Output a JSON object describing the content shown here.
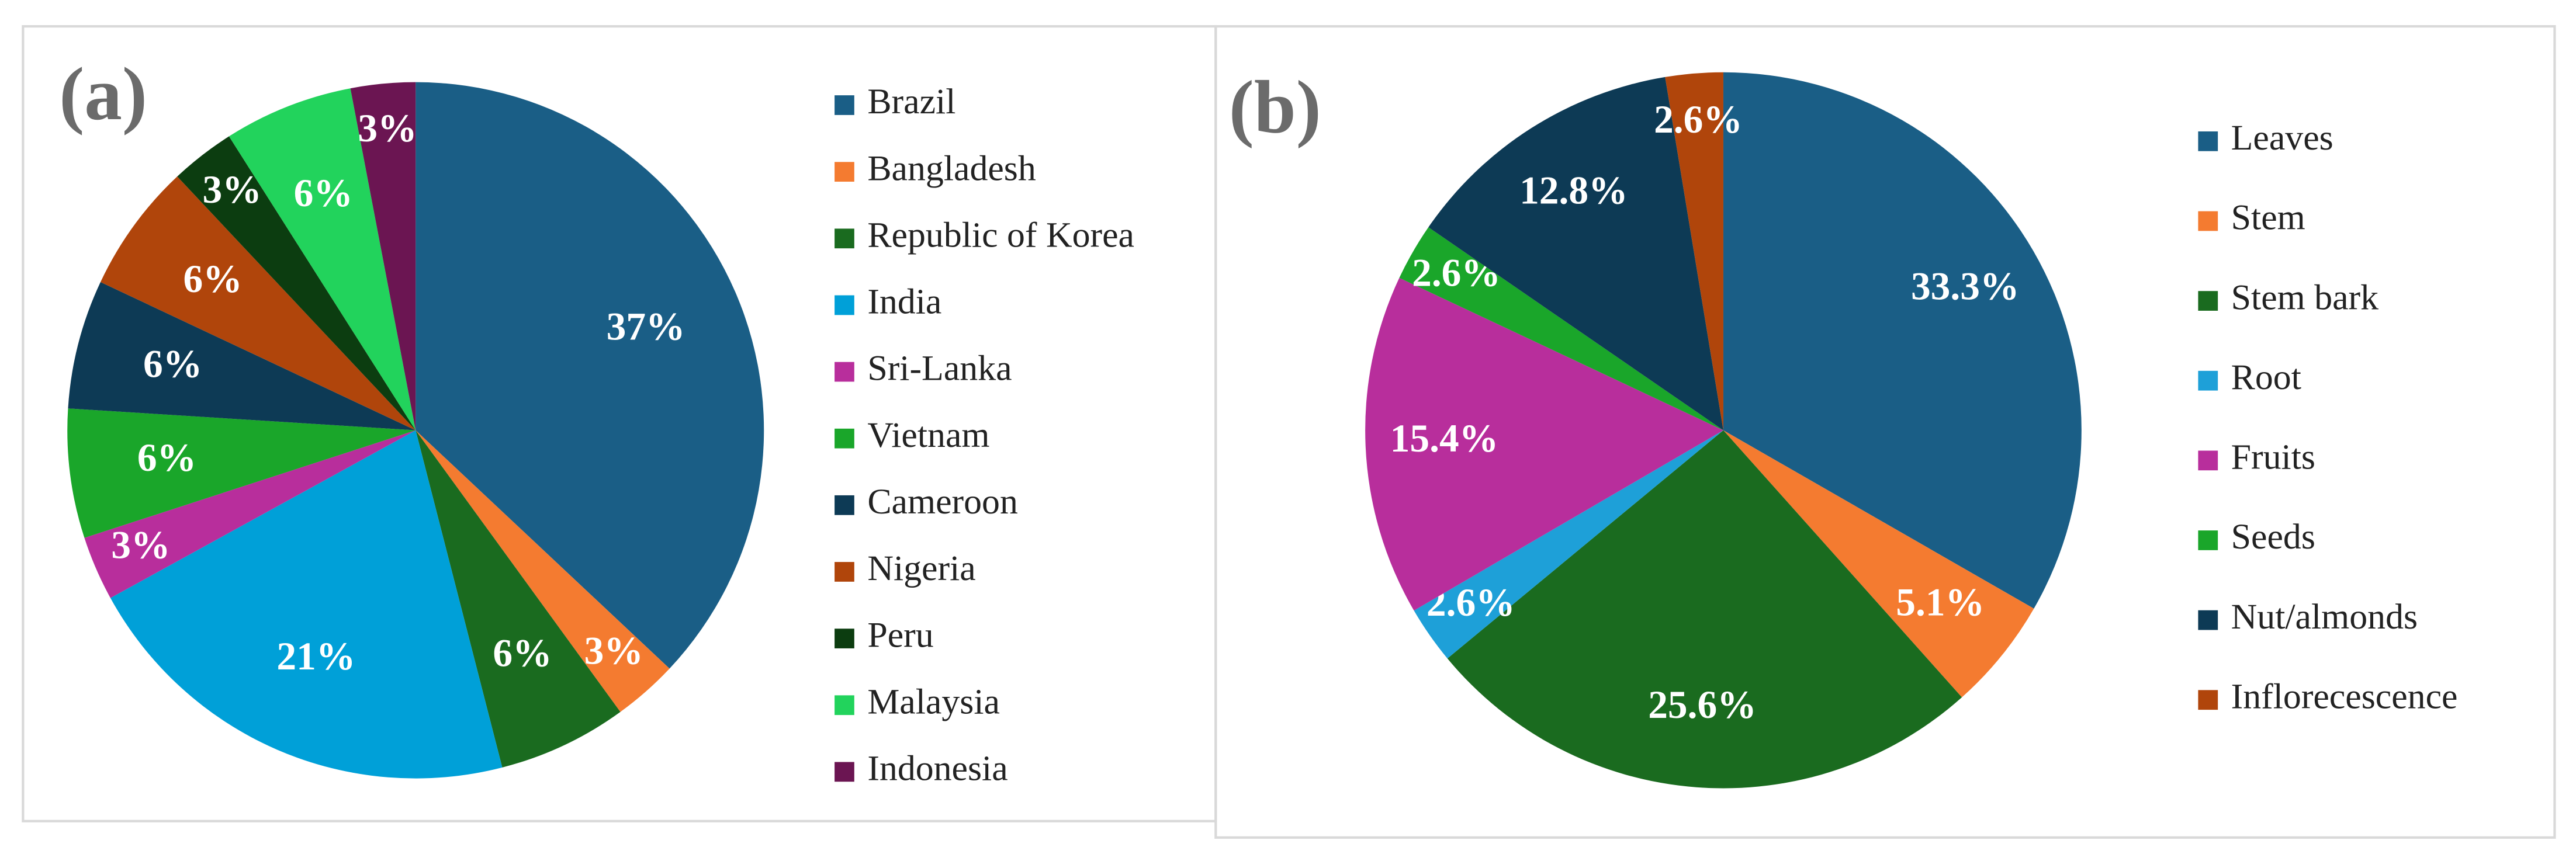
{
  "chart_data": [
    {
      "type": "pie",
      "label": "(a)",
      "categories": [
        "Brazil",
        "Bangladesh",
        "Republic of Korea",
        "India",
        "Sri-Lanka",
        "Vietnam",
        "Cameroon",
        "Nigeria",
        "Peru",
        "Malaysia",
        "Indonesia"
      ],
      "values": [
        37,
        3,
        6,
        21,
        3,
        6,
        6,
        6,
        3,
        6,
        3
      ],
      "value_labels": [
        "37%",
        "3%",
        "6%",
        "21%",
        "3%",
        "6%",
        "6%",
        "6%",
        "3%",
        "6%",
        "3%"
      ],
      "colors": [
        "#1a5e86",
        "#f47b30",
        "#1a6b1f",
        "#00a0d8",
        "#b82e9c",
        "#1aa62a",
        "#0d3a55",
        "#b0450b",
        "#0c3d10",
        "#22d35c",
        "#6b1552"
      ]
    },
    {
      "type": "pie",
      "label": "(b)",
      "categories": [
        "Leaves",
        "Stem",
        "Stem bark",
        "Root",
        "Fruits",
        "Seeds",
        "Nut/almonds",
        "Inflorecescence"
      ],
      "values": [
        33.3,
        5.1,
        25.6,
        2.6,
        15.4,
        2.6,
        12.8,
        2.6
      ],
      "value_labels": [
        "33.3%",
        "5.1%",
        "25.6%",
        "2.6%",
        "15.4%",
        "2.6%",
        "12.8%",
        "2.6%"
      ],
      "colors": [
        "#1a5e86",
        "#f47b30",
        "#1a6b1f",
        "#1ea0d8",
        "#b82e9c",
        "#1aa62a",
        "#0d3a55",
        "#b0450b"
      ]
    }
  ]
}
